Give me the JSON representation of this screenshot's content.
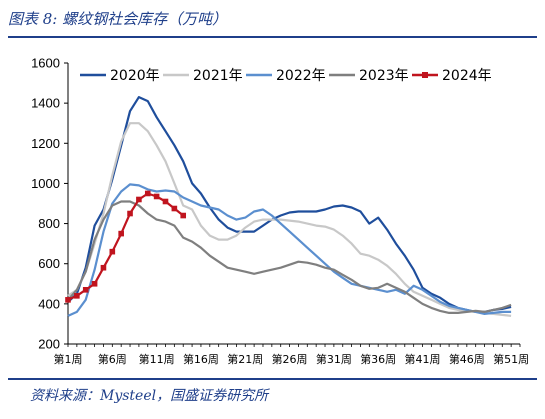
{
  "title": "图表 8:  螺纹钢社会库存（万吨）",
  "source": "资料来源：Mysteel，国盛证券研究所",
  "chart_data": {
    "type": "line",
    "ylim": [
      200,
      1600
    ],
    "yticks": [
      200,
      400,
      600,
      800,
      1000,
      1200,
      1400,
      1600
    ],
    "x_count": 52,
    "xticks": [
      1,
      6,
      11,
      16,
      21,
      26,
      31,
      36,
      41,
      46,
      51
    ],
    "xtick_labels": [
      "第1周",
      "第6周",
      "第11周",
      "第16周",
      "第21周",
      "第26周",
      "第31周",
      "第36周",
      "第41周",
      "第46周",
      "第51周"
    ],
    "legend_position": "top",
    "series": [
      {
        "name": "2020年",
        "color": "#1f4e9c",
        "marker": false,
        "x": [
          1,
          2,
          3,
          4,
          5,
          6,
          7,
          8,
          9,
          10,
          11,
          12,
          13,
          14,
          15,
          16,
          17,
          18,
          19,
          20,
          21,
          22,
          23,
          24,
          25,
          26,
          27,
          28,
          29,
          30,
          31,
          32,
          33,
          34,
          35,
          36,
          37,
          38,
          39,
          40,
          41,
          42,
          43,
          44,
          45,
          46,
          47,
          48,
          49,
          50,
          51
        ],
        "values": [
          410,
          450,
          580,
          790,
          870,
          1020,
          1190,
          1360,
          1430,
          1410,
          1330,
          1260,
          1190,
          1110,
          1000,
          950,
          880,
          820,
          780,
          760,
          760,
          760,
          790,
          820,
          840,
          855,
          860,
          860,
          860,
          870,
          885,
          890,
          880,
          860,
          800,
          830,
          770,
          700,
          640,
          570,
          480,
          450,
          430,
          400,
          380,
          370,
          360,
          360,
          370,
          375,
          385
        ]
      },
      {
        "name": "2021年",
        "color": "#c8c8c8",
        "marker": false,
        "x": [
          1,
          2,
          3,
          4,
          5,
          6,
          7,
          8,
          9,
          10,
          11,
          12,
          13,
          14,
          15,
          16,
          17,
          18,
          19,
          20,
          21,
          22,
          23,
          24,
          25,
          26,
          27,
          28,
          29,
          30,
          31,
          32,
          33,
          34,
          35,
          36,
          37,
          38,
          39,
          40,
          41,
          42,
          43,
          44,
          45,
          46,
          47,
          48,
          49,
          50,
          51
        ],
        "values": [
          440,
          470,
          560,
          700,
          850,
          1040,
          1210,
          1300,
          1300,
          1260,
          1190,
          1110,
          1000,
          890,
          870,
          790,
          740,
          720,
          720,
          740,
          780,
          810,
          820,
          820,
          820,
          815,
          810,
          800,
          790,
          785,
          770,
          740,
          700,
          650,
          640,
          620,
          590,
          550,
          500,
          460,
          440,
          420,
          400,
          380,
          370,
          365,
          360,
          355,
          350,
          345,
          340
        ]
      },
      {
        "name": "2022年",
        "color": "#5b8fcf",
        "marker": false,
        "x": [
          1,
          2,
          3,
          4,
          5,
          6,
          7,
          8,
          9,
          10,
          11,
          12,
          13,
          14,
          15,
          16,
          17,
          18,
          19,
          20,
          21,
          22,
          23,
          24,
          25,
          26,
          27,
          28,
          29,
          30,
          31,
          32,
          33,
          34,
          35,
          36,
          37,
          38,
          39,
          40,
          41,
          42,
          43,
          44,
          45,
          46,
          47,
          48,
          49,
          50,
          51
        ],
        "values": [
          340,
          360,
          420,
          570,
          760,
          900,
          960,
          995,
          990,
          970,
          960,
          965,
          960,
          930,
          910,
          890,
          880,
          870,
          840,
          820,
          830,
          860,
          870,
          840,
          800,
          760,
          720,
          680,
          640,
          600,
          560,
          530,
          500,
          490,
          480,
          470,
          460,
          470,
          450,
          490,
          470,
          440,
          410,
          390,
          380,
          370,
          360,
          350,
          355,
          360,
          360
        ]
      },
      {
        "name": "2023年",
        "color": "#7f7f7f",
        "marker": false,
        "x": [
          1,
          2,
          3,
          4,
          5,
          6,
          7,
          8,
          9,
          10,
          11,
          12,
          13,
          14,
          15,
          16,
          17,
          18,
          19,
          20,
          21,
          22,
          23,
          24,
          25,
          26,
          27,
          28,
          29,
          30,
          31,
          32,
          33,
          34,
          35,
          36,
          37,
          38,
          39,
          40,
          41,
          42,
          43,
          44,
          45,
          46,
          47,
          48,
          49,
          50,
          51
        ],
        "values": [
          420,
          470,
          560,
          720,
          820,
          890,
          910,
          910,
          890,
          850,
          820,
          810,
          790,
          730,
          710,
          680,
          640,
          610,
          580,
          570,
          560,
          550,
          560,
          570,
          580,
          595,
          610,
          605,
          595,
          580,
          570,
          545,
          520,
          490,
          475,
          480,
          500,
          480,
          460,
          430,
          400,
          380,
          365,
          355,
          355,
          360,
          365,
          360,
          370,
          380,
          395
        ]
      },
      {
        "name": "2024年",
        "color": "#c0141e",
        "marker": true,
        "x": [
          1,
          2,
          3,
          4,
          5,
          6,
          7,
          8,
          9,
          10,
          11,
          12,
          13,
          14
        ],
        "values": [
          420,
          440,
          470,
          500,
          580,
          660,
          750,
          850,
          920,
          950,
          935,
          910,
          875,
          840
        ]
      }
    ]
  }
}
